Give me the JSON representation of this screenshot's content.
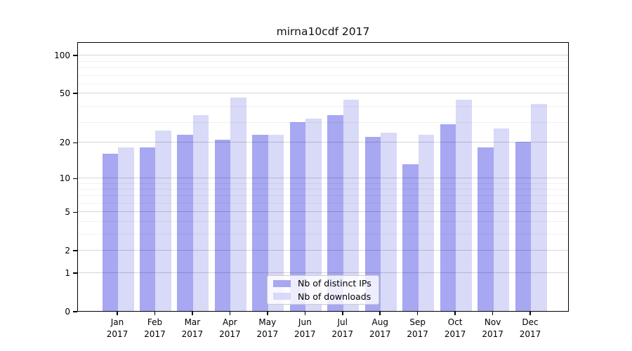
{
  "title": "mirna10cdf 2017",
  "colors": {
    "distinct_ips_bar": "#a7a7f2",
    "downloads_bar": "#d9d9f8",
    "axis": "#000000",
    "grid_major": "#d9d9d9",
    "grid_minor": "#f0f0f0",
    "legend_border": "#cccccc"
  },
  "chart_data": {
    "type": "bar",
    "title": "mirna10cdf 2017",
    "categories": [
      "Jan 2017",
      "Feb 2017",
      "Mar 2017",
      "Apr 2017",
      "May 2017",
      "Jun 2017",
      "Jul 2017",
      "Aug 2017",
      "Sep 2017",
      "Oct 2017",
      "Nov 2017",
      "Dec 2017"
    ],
    "series": [
      {
        "name": "Nb of distinct IPs",
        "color": "#a7a7f2",
        "values": [
          16,
          18,
          23,
          21,
          23,
          29,
          33,
          22,
          13,
          28,
          18,
          20
        ]
      },
      {
        "name": "Nb of downloads",
        "color": "#d9d9f8",
        "values": [
          18,
          25,
          33,
          46,
          23,
          31,
          44,
          24,
          23,
          44,
          26,
          41
        ]
      }
    ],
    "xlabel": "",
    "ylabel": "",
    "y_axis": {
      "scale": "log1p",
      "ticks": [
        0,
        1,
        2,
        5,
        10,
        20,
        50,
        100
      ],
      "ylim": [
        0,
        110
      ]
    },
    "grid": {
      "major": true,
      "minor": true
    },
    "legend_position": "lower center"
  }
}
